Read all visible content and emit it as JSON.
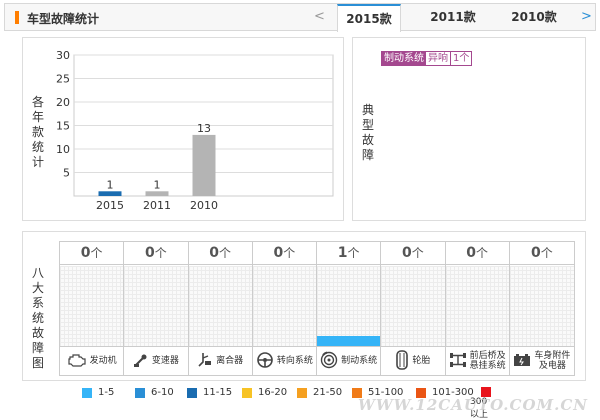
{
  "header": {
    "title": "车型故障统计",
    "prev_arrow": "<",
    "next_arrow": ">",
    "tabs": [
      {
        "label": "2015款",
        "active": true
      },
      {
        "label": "2011款",
        "active": false
      },
      {
        "label": "2010款",
        "active": false
      }
    ]
  },
  "yearly_panel": {
    "label": "各年款统计"
  },
  "typical_panel": {
    "label": "典型故障",
    "fault": {
      "system": "制动系统",
      "type": "异响",
      "count": "1个"
    }
  },
  "systems_panel": {
    "label": "八大系统故障图",
    "unit": "个",
    "systems": [
      {
        "name": "发动机",
        "count": "0",
        "icon": "engine-icon"
      },
      {
        "name": "变速器",
        "count": "0",
        "icon": "gearbox-icon"
      },
      {
        "name": "离合器",
        "count": "0",
        "icon": "clutch-icon"
      },
      {
        "name": "转向系统",
        "count": "0",
        "icon": "steering-wheel-icon"
      },
      {
        "name": "制动系统",
        "count": "1",
        "icon": "brake-disc-icon",
        "level": 0.12
      },
      {
        "name": "轮胎",
        "count": "0",
        "icon": "tire-icon"
      },
      {
        "name": "前后桥及悬挂系统",
        "count": "0",
        "icon": "axle-icon"
      },
      {
        "name": "车身附件及电器",
        "count": "0",
        "icon": "battery-icon"
      }
    ]
  },
  "legend": [
    {
      "label": "1-5",
      "color": "#35b4f7"
    },
    {
      "label": "6-10",
      "color": "#2a8fd6"
    },
    {
      "label": "11-15",
      "color": "#1a6cb0"
    },
    {
      "label": "16-20",
      "color": "#f7c325"
    },
    {
      "label": "21-50",
      "color": "#f5a020"
    },
    {
      "label": "51-100",
      "color": "#f07b18"
    },
    {
      "label": "101-300",
      "color": "#ea5514"
    },
    {
      "label": "300以上",
      "color": "#e8141c"
    }
  ],
  "watermark": "WWW.12CAUTO.COM.CN",
  "chart_data": {
    "type": "bar",
    "categories": [
      "2015",
      "2011",
      "2010"
    ],
    "values": [
      1,
      1,
      13
    ],
    "bar_colors": [
      "#1a6cb0",
      "#b4b4b4",
      "#b4b4b4"
    ],
    "ylim": [
      0,
      30
    ],
    "yticks": [
      5,
      10,
      15,
      20,
      25,
      30
    ],
    "grid": true
  }
}
